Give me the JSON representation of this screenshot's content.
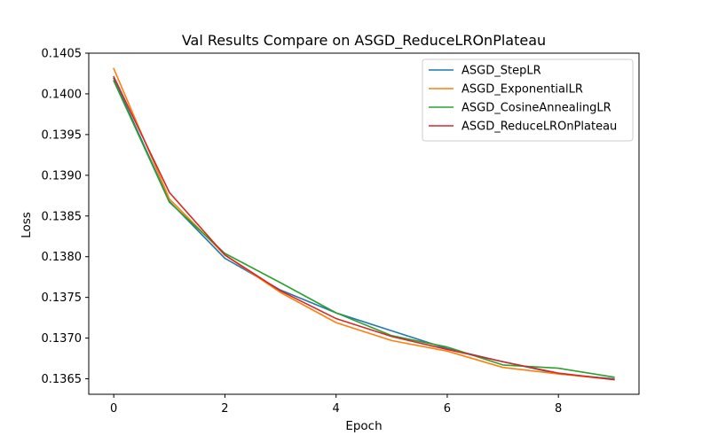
{
  "chart_data": {
    "type": "line",
    "title": "Val Results Compare on ASGD_ReduceLROnPlateau",
    "xlabel": "Epoch",
    "ylabel": "Loss",
    "xlim": [
      -0.45,
      9.45
    ],
    "ylim": [
      0.13631,
      0.1405
    ],
    "xticks": [
      0,
      2,
      4,
      6,
      8
    ],
    "xtick_labels": [
      "0",
      "2",
      "4",
      "6",
      "8"
    ],
    "yticks": [
      0.1365,
      0.137,
      0.1375,
      0.138,
      0.1385,
      0.139,
      0.1395,
      0.14,
      0.1405
    ],
    "ytick_labels": [
      "0.1365",
      "0.1370",
      "0.1375",
      "0.1380",
      "0.1385",
      "0.1390",
      "0.1395",
      "0.1400",
      "0.1405"
    ],
    "grid": false,
    "legend_position": "top-right",
    "x": [
      0,
      1,
      2,
      3,
      4,
      5,
      6,
      7,
      8,
      9
    ],
    "series": [
      {
        "name": "ASGD_StepLR",
        "color": "#1f77b4",
        "values": [
          0.14019,
          0.13868,
          0.13798,
          0.13759,
          0.13731,
          0.13709,
          0.13687,
          0.13671,
          0.13656,
          0.1365
        ]
      },
      {
        "name": "ASGD_ExponentialLR",
        "color": "#ff7f0e",
        "values": [
          0.14031,
          0.13871,
          0.13802,
          0.13756,
          0.13719,
          0.13697,
          0.13684,
          0.13664,
          0.13656,
          0.13649
        ]
      },
      {
        "name": "ASGD_CosineAnnealingLR",
        "color": "#2ca02c",
        "values": [
          0.14016,
          0.13867,
          0.13804,
          0.13768,
          0.13731,
          0.13703,
          0.13689,
          0.13667,
          0.13663,
          0.13652
        ]
      },
      {
        "name": "ASGD_ReduceLROnPlateau",
        "color": "#d62728",
        "values": [
          0.14021,
          0.13879,
          0.13802,
          0.13758,
          0.13724,
          0.13702,
          0.13686,
          0.13671,
          0.13657,
          0.13649
        ]
      }
    ]
  }
}
